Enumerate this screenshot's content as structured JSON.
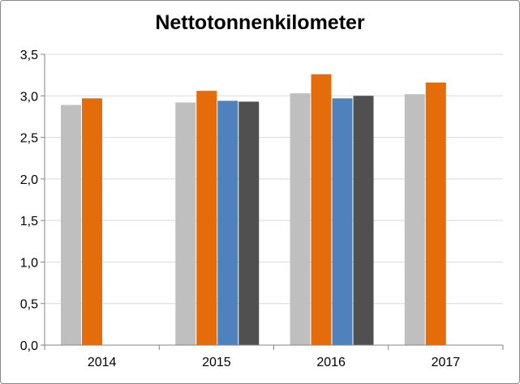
{
  "chart_data": {
    "type": "bar",
    "title": "Nettotonnenkilometer",
    "xlabel": "",
    "ylabel": "",
    "categories": [
      "2014",
      "2015",
      "2016",
      "2017"
    ],
    "ylim": [
      0,
      3.5
    ],
    "yticks": [
      "0,0",
      "0,5",
      "1,0",
      "1,5",
      "2,0",
      "2,5",
      "3,0",
      "3,5"
    ],
    "grid": true,
    "legend": "none",
    "series": [
      {
        "color": "#bfbfbf",
        "values": [
          2.89,
          2.92,
          3.03,
          3.02
        ]
      },
      {
        "color": "#e46c0a",
        "values": [
          2.97,
          3.06,
          3.26,
          3.16
        ]
      },
      {
        "color": "#4f81bd",
        "values": [
          null,
          2.94,
          2.97,
          null
        ]
      },
      {
        "color": "#505050",
        "values": [
          null,
          2.93,
          3.0,
          null
        ]
      }
    ]
  }
}
